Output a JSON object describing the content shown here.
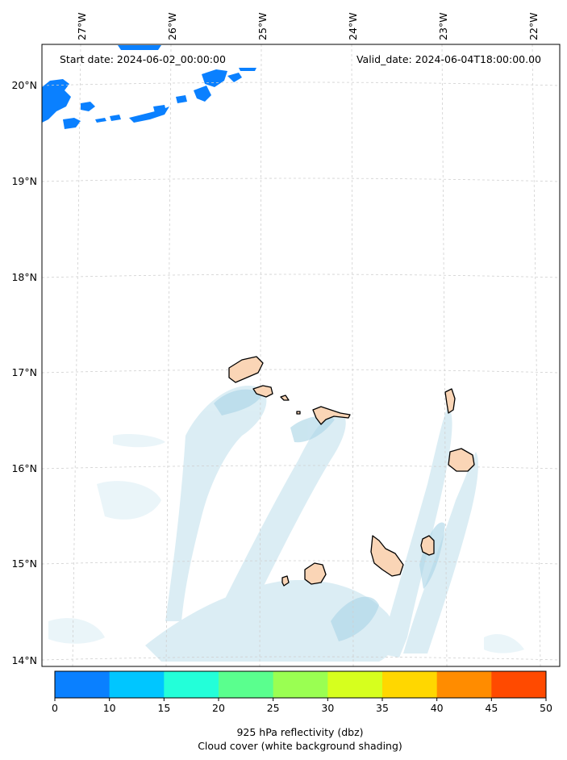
{
  "header": {
    "start_label": "Start date: 2024-06-02_00:00:00",
    "valid_label": "Valid_date: 2024-06-04T18:00:00.00"
  },
  "axes": {
    "lon_ticks": [
      "27°W",
      "26°W",
      "25°W",
      "24°W",
      "23°W",
      "22°W"
    ],
    "lat_ticks": [
      "20°N",
      "19°N",
      "18°N",
      "17°N",
      "16°N",
      "15°N",
      "14°N"
    ],
    "gridlines": true
  },
  "colorbar": {
    "ticks": [
      "0",
      "10",
      "15",
      "20",
      "25",
      "30",
      "35",
      "40",
      "45",
      "50"
    ],
    "colors": [
      "#0a80ff",
      "#00c6ff",
      "#23ffd9",
      "#5aff8e",
      "#9aff52",
      "#d6ff1e",
      "#ffd700",
      "#ff8c00",
      "#ff4a00"
    ],
    "label_line1": "925 hPa reflectivity (dbz)",
    "label_line2": "Cloud cover (white background shading)"
  },
  "colors": {
    "cloud": "#b8dcea",
    "land": "#fad5b6",
    "coast": "#000000",
    "grid": "#cccccc"
  }
}
